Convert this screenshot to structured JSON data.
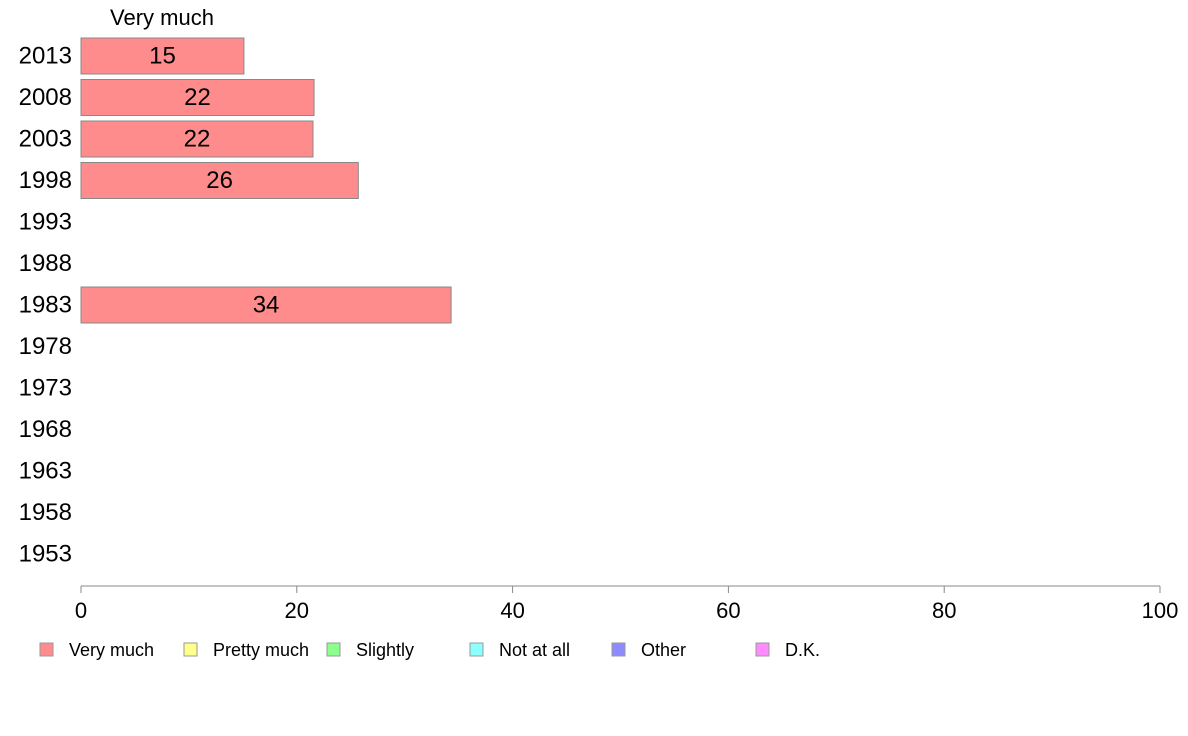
{
  "chart_data": {
    "type": "bar",
    "orientation": "horizontal",
    "series_title": "Very much",
    "categories": [
      "2013",
      "2008",
      "2003",
      "1998",
      "1993",
      "1988",
      "1983",
      "1978",
      "1973",
      "1968",
      "1963",
      "1958",
      "1953"
    ],
    "series": [
      {
        "name": "Very much",
        "color": "#FF8C8C",
        "values": [
          15.1,
          21.6,
          21.5,
          25.7,
          null,
          null,
          34.3,
          null,
          null,
          null,
          null,
          null,
          null
        ],
        "labels": [
          "15",
          "22",
          "22",
          "26",
          "",
          "",
          "34",
          "",
          "",
          "",
          "",
          "",
          ""
        ]
      }
    ],
    "xlim": [
      0,
      100
    ],
    "xticks": [
      "0",
      "20",
      "40",
      "60",
      "80",
      "100"
    ],
    "grid": false,
    "legend_position": "bottom",
    "legend": [
      {
        "label": "Very much",
        "color": "#FF8C8C"
      },
      {
        "label": "Pretty much",
        "color": "#FFFF8C"
      },
      {
        "label": "Slightly",
        "color": "#8CFF8C"
      },
      {
        "label": "Not at all",
        "color": "#8CFFFF"
      },
      {
        "label": "Other",
        "color": "#8C8CFF"
      },
      {
        "label": "D.K.",
        "color": "#FF8CFF"
      }
    ]
  }
}
